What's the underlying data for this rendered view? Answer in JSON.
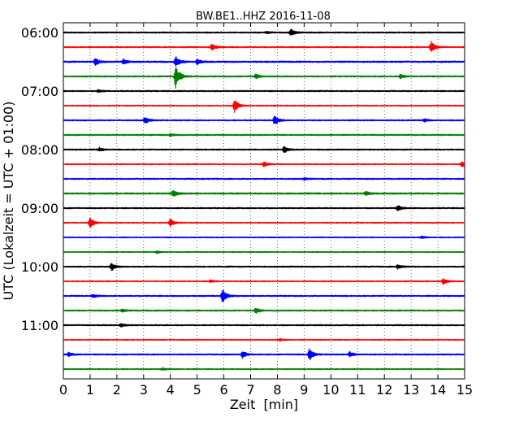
{
  "chart_data": {
    "type": "line",
    "title": "BW.BE1..HHZ 2016-11-08",
    "xlabel": "Zeit  [min]",
    "ylabel": "UTC (Lokalzeit = UTC + 01:00)",
    "xlim": [
      0,
      15
    ],
    "x_ticks": [
      "0",
      "1",
      "2",
      "3",
      "4",
      "5",
      "6",
      "7",
      "8",
      "9",
      "10",
      "11",
      "12",
      "13",
      "14",
      "15"
    ],
    "y_tick_labels": [
      "06:00",
      "07:00",
      "08:00",
      "09:00",
      "10:00",
      "11:00"
    ],
    "grid": "vertical dotted at each minute",
    "trace_colors": [
      "#000000",
      "#ff0000",
      "#0000ff",
      "#008000"
    ],
    "traces": [
      {
        "start": "06:00",
        "color": "#000000",
        "noise": 0.6,
        "events": [
          {
            "t": 7.6,
            "amp": 1.2
          },
          {
            "t": 8.5,
            "amp": 4.5
          }
        ]
      },
      {
        "start": "06:15",
        "color": "#ff0000",
        "noise": 0.6,
        "events": [
          {
            "t": 5.55,
            "amp": 4.5
          },
          {
            "t": 13.75,
            "amp": 7.5
          }
        ]
      },
      {
        "start": "06:30",
        "color": "#0000ff",
        "noise": 0.7,
        "events": [
          {
            "t": 1.2,
            "amp": 4.5
          },
          {
            "t": 2.25,
            "amp": 3.5
          },
          {
            "t": 4.2,
            "amp": 6.5
          },
          {
            "t": 5.0,
            "amp": 3.5
          }
        ]
      },
      {
        "start": "06:45",
        "color": "#008000",
        "noise": 0.6,
        "events": [
          {
            "t": 4.2,
            "amp": 16.0
          },
          {
            "t": 7.2,
            "amp": 3.0
          },
          {
            "t": 12.6,
            "amp": 2.5
          }
        ]
      },
      {
        "start": "07:00",
        "color": "#000000",
        "noise": 0.6,
        "events": [
          {
            "t": 1.3,
            "amp": 1.5
          }
        ]
      },
      {
        "start": "07:15",
        "color": "#ff0000",
        "noise": 0.5,
        "events": [
          {
            "t": 6.4,
            "amp": 8.5
          }
        ]
      },
      {
        "start": "07:30",
        "color": "#0000ff",
        "noise": 0.6,
        "events": [
          {
            "t": 3.05,
            "amp": 4.5
          },
          {
            "t": 7.9,
            "amp": 6.0
          },
          {
            "t": 13.5,
            "amp": 2.0
          }
        ]
      },
      {
        "start": "07:45",
        "color": "#008000",
        "noise": 0.6,
        "events": [
          {
            "t": 4.0,
            "amp": 1.5
          }
        ]
      },
      {
        "start": "08:00",
        "color": "#000000",
        "noise": 0.6,
        "events": [
          {
            "t": 1.35,
            "amp": 2.5
          },
          {
            "t": 8.25,
            "amp": 4.0
          }
        ]
      },
      {
        "start": "08:15",
        "color": "#ff0000",
        "noise": 0.5,
        "events": [
          {
            "t": 7.5,
            "amp": 3.5
          },
          {
            "t": 14.9,
            "amp": 4.0
          }
        ]
      },
      {
        "start": "08:30",
        "color": "#0000ff",
        "noise": 0.6,
        "events": [
          {
            "t": 9.0,
            "amp": 1.5
          }
        ]
      },
      {
        "start": "08:45",
        "color": "#008000",
        "noise": 0.7,
        "events": [
          {
            "t": 4.1,
            "amp": 4.5
          },
          {
            "t": 11.3,
            "amp": 3.0
          }
        ]
      },
      {
        "start": "09:00",
        "color": "#000000",
        "noise": 0.6,
        "events": [
          {
            "t": 12.5,
            "amp": 3.5
          }
        ]
      },
      {
        "start": "09:15",
        "color": "#ff0000",
        "noise": 0.5,
        "events": [
          {
            "t": 1.0,
            "amp": 6.5
          },
          {
            "t": 4.0,
            "amp": 5.0
          }
        ]
      },
      {
        "start": "09:30",
        "color": "#0000ff",
        "noise": 0.5,
        "events": [
          {
            "t": 13.4,
            "amp": 1.5
          }
        ]
      },
      {
        "start": "09:45",
        "color": "#008000",
        "noise": 0.5,
        "events": [
          {
            "t": 3.5,
            "amp": 1.5
          }
        ]
      },
      {
        "start": "10:00",
        "color": "#000000",
        "noise": 0.6,
        "events": [
          {
            "t": 1.8,
            "amp": 5.0
          },
          {
            "t": 12.5,
            "amp": 2.5
          }
        ]
      },
      {
        "start": "10:15",
        "color": "#ff0000",
        "noise": 0.5,
        "events": [
          {
            "t": 5.5,
            "amp": 1.5
          },
          {
            "t": 14.2,
            "amp": 4.0
          }
        ]
      },
      {
        "start": "10:30",
        "color": "#0000ff",
        "noise": 0.6,
        "events": [
          {
            "t": 1.1,
            "amp": 2.0
          },
          {
            "t": 5.95,
            "amp": 9.0
          }
        ]
      },
      {
        "start": "10:45",
        "color": "#008000",
        "noise": 0.6,
        "events": [
          {
            "t": 2.2,
            "amp": 2.0
          },
          {
            "t": 7.2,
            "amp": 3.5
          }
        ]
      },
      {
        "start": "11:00",
        "color": "#000000",
        "noise": 0.6,
        "events": [
          {
            "t": 2.15,
            "amp": 2.0
          }
        ]
      },
      {
        "start": "11:15",
        "color": "#ff0000",
        "noise": 0.5,
        "events": [
          {
            "t": 8.1,
            "amp": 1.5
          }
        ]
      },
      {
        "start": "11:30",
        "color": "#0000ff",
        "noise": 0.6,
        "events": [
          {
            "t": 0.2,
            "amp": 2.5
          },
          {
            "t": 6.7,
            "amp": 4.5
          },
          {
            "t": 9.2,
            "amp": 8.0
          },
          {
            "t": 10.7,
            "amp": 3.5
          }
        ]
      },
      {
        "start": "11:45",
        "color": "#008000",
        "noise": 0.5,
        "events": [
          {
            "t": 3.7,
            "amp": 1.5
          }
        ]
      }
    ]
  }
}
